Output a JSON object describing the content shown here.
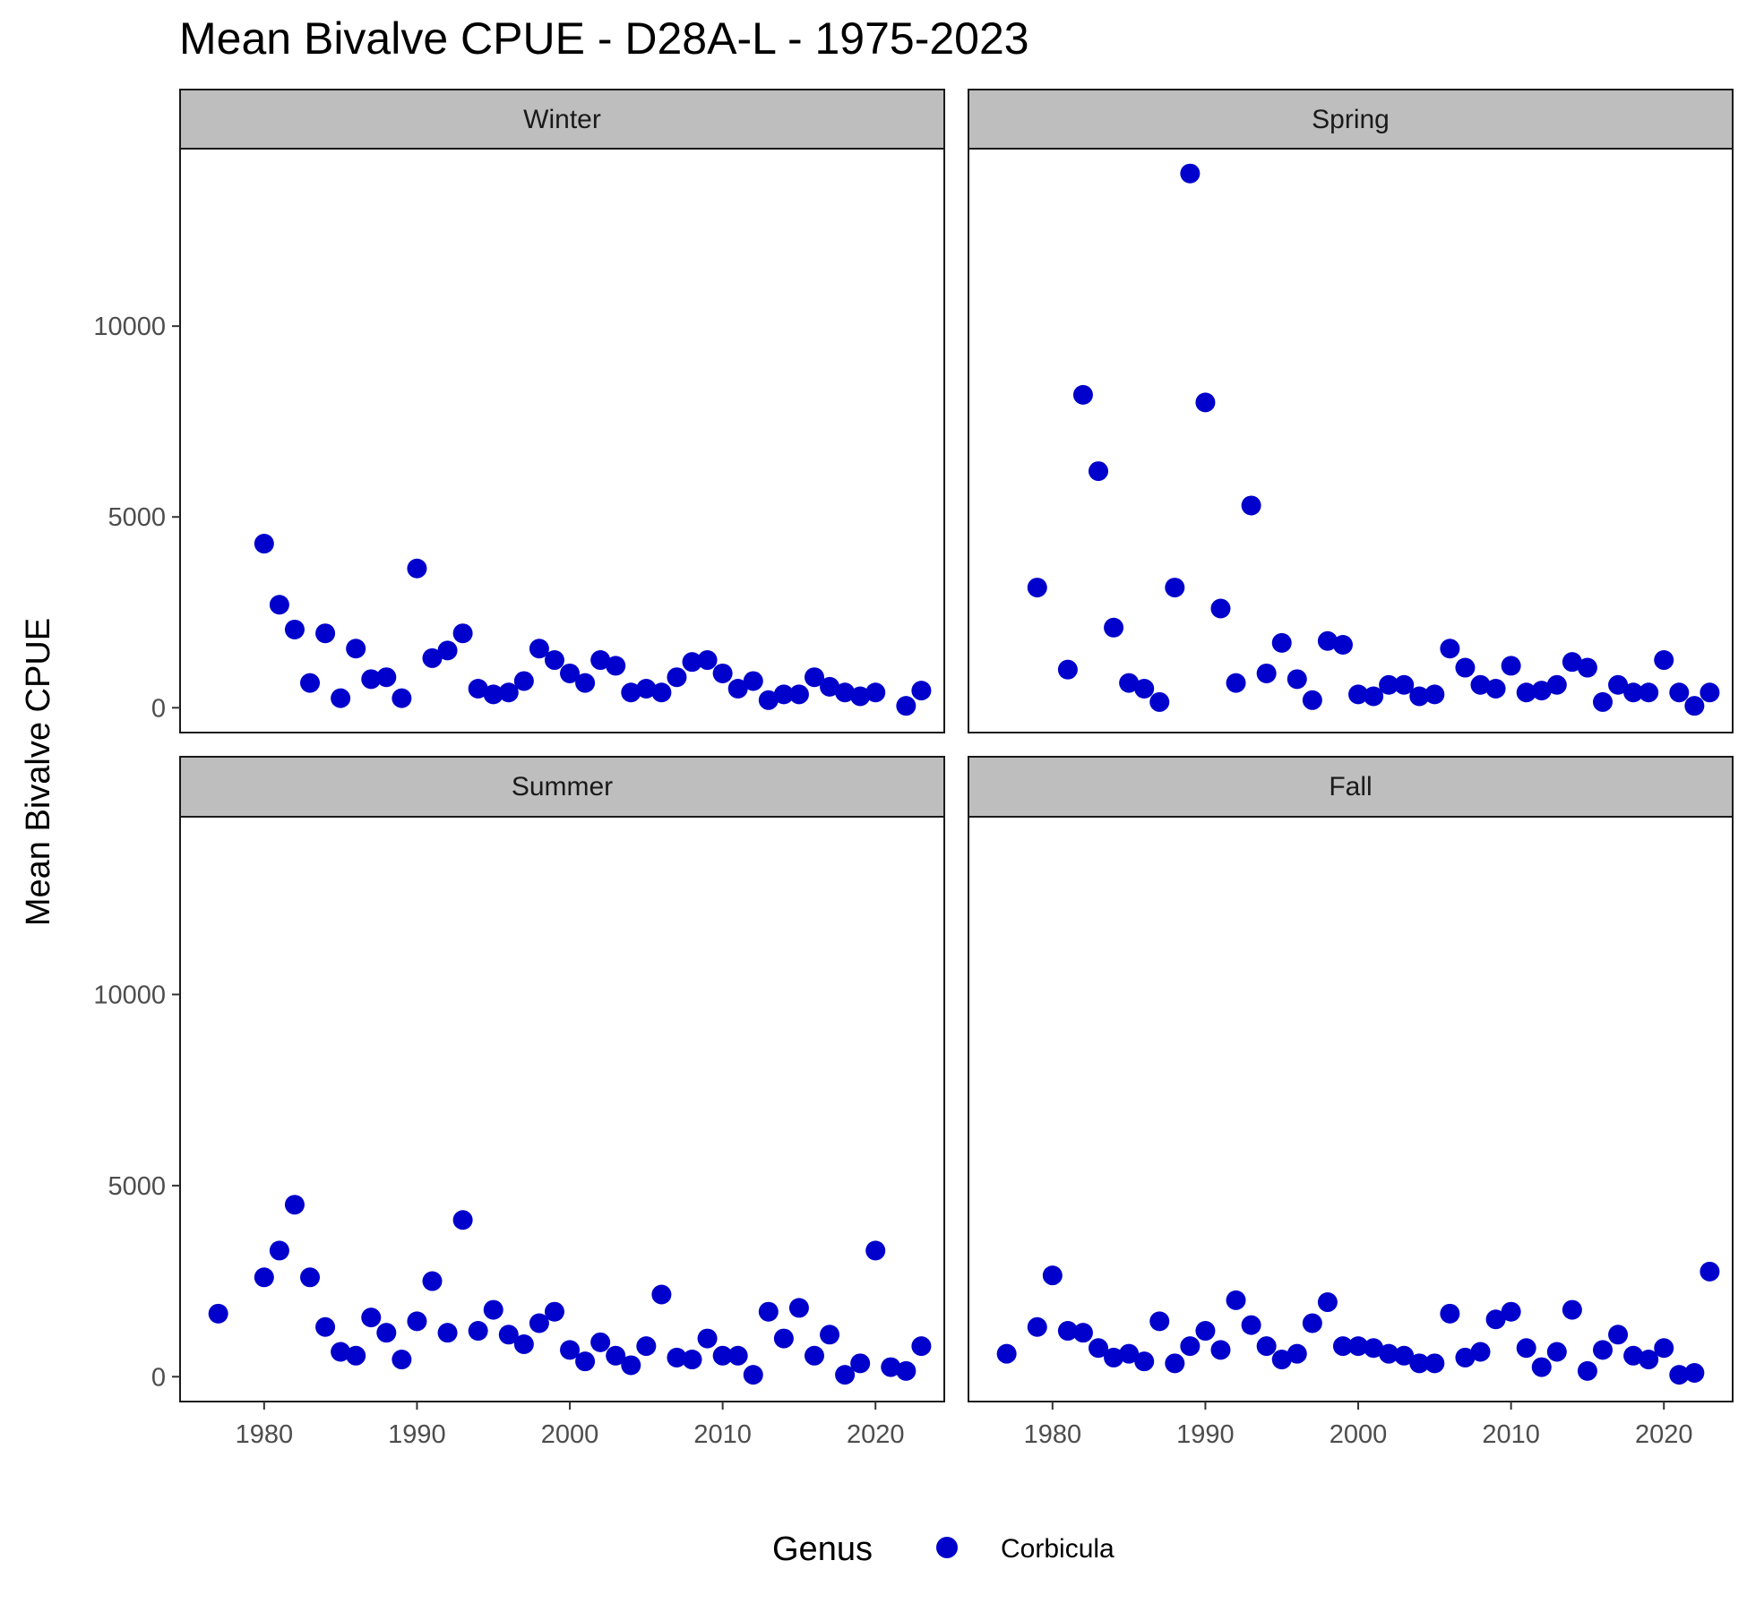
{
  "chart_data": {
    "type": "scatter",
    "title": "Mean Bivalve CPUE - D28A-L - 1975-2023",
    "xlabel": "",
    "ylabel": "Mean Bivalve CPUE",
    "xlim": [
      1974.5,
      2024.5
    ],
    "ylim": [
      -650,
      14650
    ],
    "x_ticks": [
      1980,
      1990,
      2000,
      2010,
      2020
    ],
    "y_ticks": [
      0,
      5000,
      10000
    ],
    "grid": false,
    "legend": {
      "title": "Genus",
      "position": "bottom",
      "entries": [
        {
          "label": "Corbicula",
          "color": "#0000CD",
          "shape": "circle"
        }
      ]
    },
    "point_color": "#0000CD",
    "panels": [
      {
        "name": "Winter",
        "series": [
          {
            "name": "Corbicula",
            "points": [
              [
                1980,
                4300
              ],
              [
                1981,
                2700
              ],
              [
                1982,
                2050
              ],
              [
                1983,
                650
              ],
              [
                1984,
                1950
              ],
              [
                1985,
                250
              ],
              [
                1986,
                1550
              ],
              [
                1987,
                750
              ],
              [
                1988,
                800
              ],
              [
                1989,
                250
              ],
              [
                1990,
                3650
              ],
              [
                1991,
                1300
              ],
              [
                1992,
                1500
              ],
              [
                1993,
                1950
              ],
              [
                1994,
                500
              ],
              [
                1995,
                350
              ],
              [
                1996,
                400
              ],
              [
                1997,
                700
              ],
              [
                1998,
                1550
              ],
              [
                1999,
                1250
              ],
              [
                2000,
                900
              ],
              [
                2001,
                650
              ],
              [
                2002,
                1250
              ],
              [
                2003,
                1100
              ],
              [
                2004,
                400
              ],
              [
                2005,
                500
              ],
              [
                2006,
                400
              ],
              [
                2007,
                800
              ],
              [
                2008,
                1200
              ],
              [
                2009,
                1250
              ],
              [
                2010,
                900
              ],
              [
                2011,
                500
              ],
              [
                2012,
                700
              ],
              [
                2013,
                200
              ],
              [
                2014,
                350
              ],
              [
                2015,
                350
              ],
              [
                2016,
                800
              ],
              [
                2017,
                550
              ],
              [
                2018,
                400
              ],
              [
                2019,
                300
              ],
              [
                2020,
                400
              ],
              [
                2022,
                50
              ],
              [
                2023,
                450
              ]
            ]
          }
        ]
      },
      {
        "name": "Spring",
        "series": [
          {
            "name": "Corbicula",
            "points": [
              [
                1979,
                3150
              ],
              [
                1981,
                1000
              ],
              [
                1982,
                8200
              ],
              [
                1983,
                6200
              ],
              [
                1984,
                2100
              ],
              [
                1985,
                650
              ],
              [
                1986,
                500
              ],
              [
                1987,
                150
              ],
              [
                1988,
                3150
              ],
              [
                1989,
                14000
              ],
              [
                1990,
                8000
              ],
              [
                1991,
                2600
              ],
              [
                1992,
                650
              ],
              [
                1993,
                5300
              ],
              [
                1994,
                900
              ],
              [
                1995,
                1700
              ],
              [
                1996,
                750
              ],
              [
                1997,
                200
              ],
              [
                1998,
                1750
              ],
              [
                1999,
                1650
              ],
              [
                2000,
                350
              ],
              [
                2001,
                300
              ],
              [
                2002,
                600
              ],
              [
                2003,
                600
              ],
              [
                2004,
                300
              ],
              [
                2005,
                350
              ],
              [
                2006,
                1550
              ],
              [
                2007,
                1050
              ],
              [
                2008,
                600
              ],
              [
                2009,
                500
              ],
              [
                2010,
                1100
              ],
              [
                2011,
                400
              ],
              [
                2012,
                450
              ],
              [
                2013,
                600
              ],
              [
                2014,
                1200
              ],
              [
                2015,
                1050
              ],
              [
                2016,
                150
              ],
              [
                2017,
                600
              ],
              [
                2018,
                400
              ],
              [
                2019,
                400
              ],
              [
                2020,
                1250
              ],
              [
                2021,
                400
              ],
              [
                2022,
                50
              ],
              [
                2023,
                400
              ]
            ]
          }
        ]
      },
      {
        "name": "Summer",
        "series": [
          {
            "name": "Corbicula",
            "points": [
              [
                1977,
                1650
              ],
              [
                1980,
                2600
              ],
              [
                1981,
                3300
              ],
              [
                1982,
                4500
              ],
              [
                1983,
                2600
              ],
              [
                1984,
                1300
              ],
              [
                1985,
                650
              ],
              [
                1986,
                550
              ],
              [
                1987,
                1550
              ],
              [
                1988,
                1150
              ],
              [
                1989,
                450
              ],
              [
                1990,
                1450
              ],
              [
                1991,
                2500
              ],
              [
                1992,
                1150
              ],
              [
                1993,
                4100
              ],
              [
                1994,
                1200
              ],
              [
                1995,
                1750
              ],
              [
                1996,
                1100
              ],
              [
                1997,
                850
              ],
              [
                1998,
                1400
              ],
              [
                1999,
                1700
              ],
              [
                2000,
                700
              ],
              [
                2001,
                400
              ],
              [
                2002,
                900
              ],
              [
                2003,
                550
              ],
              [
                2004,
                300
              ],
              [
                2005,
                800
              ],
              [
                2006,
                2150
              ],
              [
                2007,
                500
              ],
              [
                2008,
                450
              ],
              [
                2009,
                1000
              ],
              [
                2010,
                550
              ],
              [
                2011,
                550
              ],
              [
                2012,
                50
              ],
              [
                2013,
                1700
              ],
              [
                2014,
                1000
              ],
              [
                2015,
                1800
              ],
              [
                2016,
                550
              ],
              [
                2017,
                1100
              ],
              [
                2018,
                50
              ],
              [
                2019,
                350
              ],
              [
                2020,
                3300
              ],
              [
                2021,
                250
              ],
              [
                2022,
                150
              ],
              [
                2023,
                800
              ]
            ]
          }
        ]
      },
      {
        "name": "Fall",
        "series": [
          {
            "name": "Corbicula",
            "points": [
              [
                1977,
                600
              ],
              [
                1979,
                1300
              ],
              [
                1980,
                2650
              ],
              [
                1981,
                1200
              ],
              [
                1982,
                1150
              ],
              [
                1983,
                750
              ],
              [
                1984,
                500
              ],
              [
                1985,
                600
              ],
              [
                1986,
                400
              ],
              [
                1987,
                1450
              ],
              [
                1988,
                350
              ],
              [
                1989,
                800
              ],
              [
                1990,
                1200
              ],
              [
                1991,
                700
              ],
              [
                1992,
                2000
              ],
              [
                1993,
                1350
              ],
              [
                1994,
                800
              ],
              [
                1995,
                450
              ],
              [
                1996,
                600
              ],
              [
                1997,
                1400
              ],
              [
                1998,
                1950
              ],
              [
                1999,
                800
              ],
              [
                2000,
                800
              ],
              [
                2001,
                750
              ],
              [
                2002,
                600
              ],
              [
                2003,
                550
              ],
              [
                2004,
                350
              ],
              [
                2005,
                350
              ],
              [
                2006,
                1650
              ],
              [
                2007,
                500
              ],
              [
                2008,
                650
              ],
              [
                2009,
                1500
              ],
              [
                2010,
                1700
              ],
              [
                2011,
                750
              ],
              [
                2012,
                250
              ],
              [
                2013,
                650
              ],
              [
                2014,
                1750
              ],
              [
                2015,
                150
              ],
              [
                2016,
                700
              ],
              [
                2017,
                1100
              ],
              [
                2018,
                550
              ],
              [
                2019,
                450
              ],
              [
                2020,
                750
              ],
              [
                2021,
                50
              ],
              [
                2022,
                100
              ],
              [
                2023,
                2750
              ]
            ]
          }
        ]
      }
    ]
  }
}
